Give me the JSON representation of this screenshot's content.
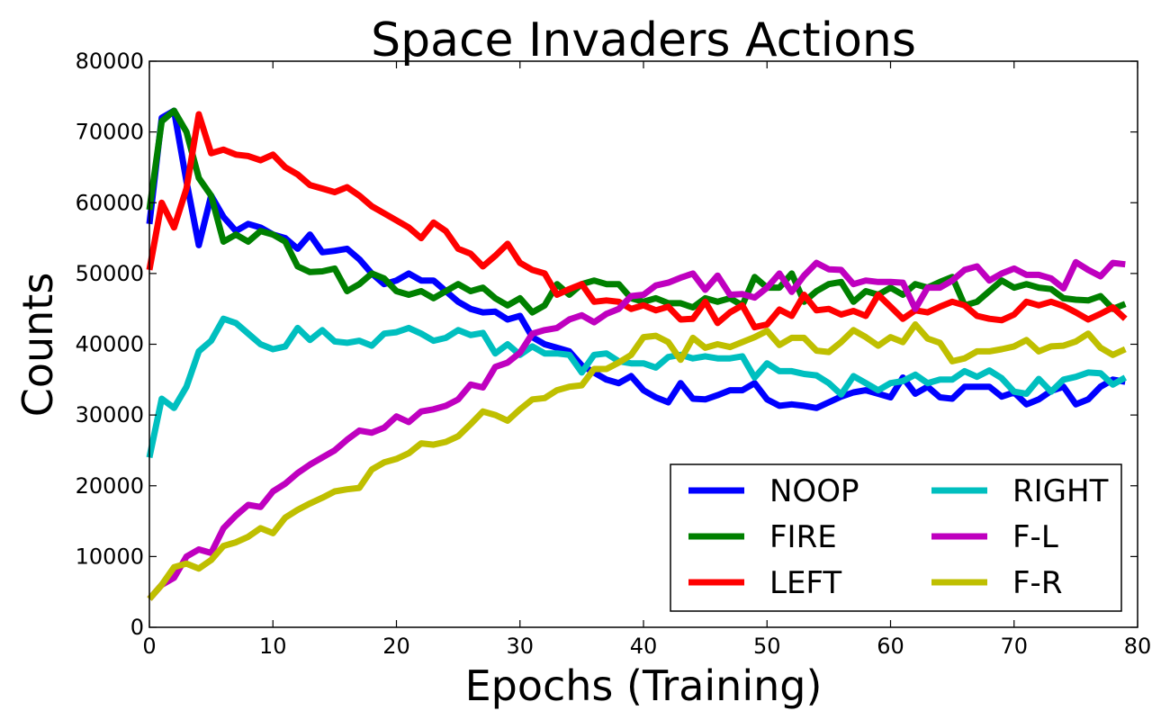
{
  "chart_data": {
    "type": "line",
    "title": "Space Invaders Actions",
    "xlabel": "Epochs (Training)",
    "ylabel": "Counts",
    "xlim": [
      0,
      80
    ],
    "ylim": [
      0,
      80000
    ],
    "xticks": [
      0,
      10,
      20,
      30,
      40,
      50,
      60,
      70,
      80
    ],
    "yticks": [
      0,
      10000,
      20000,
      30000,
      40000,
      50000,
      60000,
      70000,
      80000
    ],
    "grid": false,
    "legend": {
      "position": "lower-right",
      "columns": 2
    },
    "x": [
      0,
      1,
      2,
      3,
      4,
      5,
      6,
      7,
      8,
      9,
      10,
      11,
      12,
      13,
      14,
      15,
      16,
      17,
      18,
      19,
      20,
      21,
      22,
      23,
      24,
      25,
      26,
      27,
      28,
      29,
      30,
      31,
      32,
      33,
      34,
      35,
      36,
      37,
      38,
      39,
      40,
      41,
      42,
      43,
      44,
      45,
      46,
      47,
      48,
      49,
      50,
      51,
      52,
      53,
      54,
      55,
      56,
      57,
      58,
      59,
      60,
      61,
      62,
      63,
      64,
      65,
      66,
      67,
      68,
      69,
      70,
      71,
      72,
      73,
      74,
      75,
      76,
      77,
      78,
      79
    ],
    "series": [
      {
        "name": "NOOP",
        "color": "#0000ff",
        "values": [
          57000,
          72000,
          73000,
          63000,
          54000,
          61000,
          58000,
          56000,
          57000,
          56500,
          55500,
          55000,
          53500,
          55500,
          53000,
          53200,
          53500,
          52000,
          50000,
          48500,
          49000,
          50000,
          49000,
          49000,
          47500,
          46000,
          45000,
          44500,
          44600,
          43500,
          44000,
          41000,
          40000,
          39500,
          39000,
          37000,
          36000,
          35000,
          34500,
          35500,
          33500,
          32500,
          31800,
          34500,
          32300,
          32200,
          32800,
          33500,
          33500,
          34500,
          32200,
          31300,
          31500,
          31300,
          31000,
          31800,
          32600,
          33200,
          33500,
          33000,
          32500,
          35300,
          33000,
          34000,
          32500,
          32300,
          34000,
          34000,
          34000,
          32600,
          33200,
          31500,
          32200,
          33400,
          34000,
          31500,
          32200,
          34000,
          35000,
          34700
        ]
      },
      {
        "name": "FIRE",
        "color": "#008000",
        "values": [
          59000,
          71500,
          73000,
          70000,
          63500,
          61000,
          54500,
          55500,
          54500,
          56000,
          55500,
          54500,
          51000,
          50200,
          50300,
          50700,
          47500,
          48500,
          50000,
          49300,
          47500,
          47000,
          47500,
          46500,
          47500,
          48500,
          47500,
          48000,
          46500,
          45500,
          46500,
          44500,
          45500,
          48500,
          47000,
          48500,
          49000,
          48500,
          48500,
          46500,
          46000,
          46500,
          45800,
          45800,
          45200,
          46500,
          46000,
          46500,
          45500,
          49500,
          48000,
          48000,
          50000,
          46000,
          47500,
          48500,
          48800,
          46000,
          47500,
          47000,
          48000,
          47000,
          48500,
          48000,
          48800,
          49500,
          45500,
          46000,
          47500,
          49000,
          48000,
          48500,
          48000,
          47800,
          46500,
          46300,
          46200,
          46800,
          45000,
          45700
        ]
      },
      {
        "name": "LEFT",
        "color": "#ff0000",
        "values": [
          50500,
          60000,
          56500,
          62000,
          72500,
          67000,
          67500,
          66800,
          66600,
          66000,
          66800,
          65000,
          64000,
          62500,
          62000,
          61500,
          62200,
          61000,
          59500,
          58500,
          57500,
          56500,
          55000,
          57200,
          56000,
          53500,
          52800,
          51000,
          52500,
          54200,
          51500,
          50500,
          50000,
          47000,
          47800,
          48500,
          46000,
          46200,
          46000,
          45000,
          45500,
          44800,
          45300,
          43500,
          43600,
          46000,
          43000,
          44500,
          45500,
          42400,
          42800,
          44900,
          44000,
          47000,
          44800,
          45000,
          44200,
          44700,
          44000,
          47000,
          45300,
          43600,
          44800,
          44500,
          45300,
          46000,
          45500,
          44000,
          43600,
          43400,
          44200,
          46000,
          45500,
          46000,
          45400,
          44500,
          43500,
          44300,
          45200,
          43600
        ]
      },
      {
        "name": "RIGHT",
        "color": "#00bfbf",
        "values": [
          24000,
          32300,
          31000,
          34000,
          39000,
          40500,
          43600,
          43000,
          41500,
          40000,
          39300,
          39700,
          42300,
          40600,
          42000,
          40400,
          40200,
          40500,
          39800,
          41500,
          41700,
          42300,
          41500,
          40500,
          40900,
          42000,
          41300,
          41600,
          38700,
          40000,
          38500,
          39700,
          38700,
          38700,
          38500,
          36000,
          38500,
          38700,
          37600,
          37300,
          37300,
          36700,
          38200,
          38500,
          38000,
          38300,
          38000,
          38000,
          38300,
          35300,
          37300,
          36200,
          36200,
          35800,
          35600,
          34500,
          32900,
          35500,
          34500,
          33500,
          34500,
          34800,
          35700,
          34500,
          35000,
          35000,
          36200,
          35400,
          36300,
          35200,
          33300,
          33000,
          35100,
          33300,
          35000,
          35400,
          36000,
          35900,
          34300,
          35300
        ]
      },
      {
        "name": "F-L",
        "color": "#bf00bf",
        "values": [
          4000,
          6000,
          7000,
          10000,
          11000,
          10500,
          14000,
          15800,
          17300,
          17000,
          19200,
          20300,
          21800,
          23000,
          24000,
          25000,
          26500,
          27800,
          27500,
          28200,
          29800,
          29000,
          30500,
          30800,
          31300,
          32200,
          34300,
          33900,
          36800,
          37400,
          38800,
          41500,
          42000,
          42300,
          43500,
          44100,
          43100,
          44300,
          45000,
          46800,
          47000,
          48300,
          48700,
          49400,
          50000,
          47700,
          49700,
          47000,
          47100,
          46600,
          48000,
          50000,
          47400,
          49700,
          51500,
          50600,
          50500,
          48500,
          49000,
          48800,
          48800,
          48700,
          45000,
          48000,
          48000,
          49000,
          50500,
          51000,
          49000,
          50000,
          50700,
          49800,
          49800,
          49300,
          47900,
          51600,
          50500,
          49600,
          51500,
          51300
        ]
      },
      {
        "name": "F-R",
        "color": "#bfbf00",
        "values": [
          4000,
          6000,
          8500,
          9000,
          8300,
          9500,
          11500,
          12000,
          12800,
          14000,
          13300,
          15500,
          16600,
          17500,
          18300,
          19200,
          19500,
          19700,
          22300,
          23300,
          23800,
          24600,
          26000,
          25800,
          26200,
          27000,
          28700,
          30500,
          30000,
          29200,
          30800,
          32200,
          32400,
          33500,
          34000,
          34200,
          36500,
          36500,
          37400,
          38500,
          41000,
          41200,
          40300,
          37800,
          40900,
          39500,
          40000,
          39600,
          40300,
          41000,
          41900,
          39900,
          40900,
          40900,
          39100,
          38900,
          40300,
          42000,
          41000,
          39800,
          41000,
          40300,
          42800,
          40800,
          40200,
          37600,
          38000,
          39000,
          39000,
          39300,
          39700,
          40600,
          39000,
          39700,
          39800,
          40400,
          41500,
          39500,
          38500,
          39300
        ]
      }
    ]
  }
}
